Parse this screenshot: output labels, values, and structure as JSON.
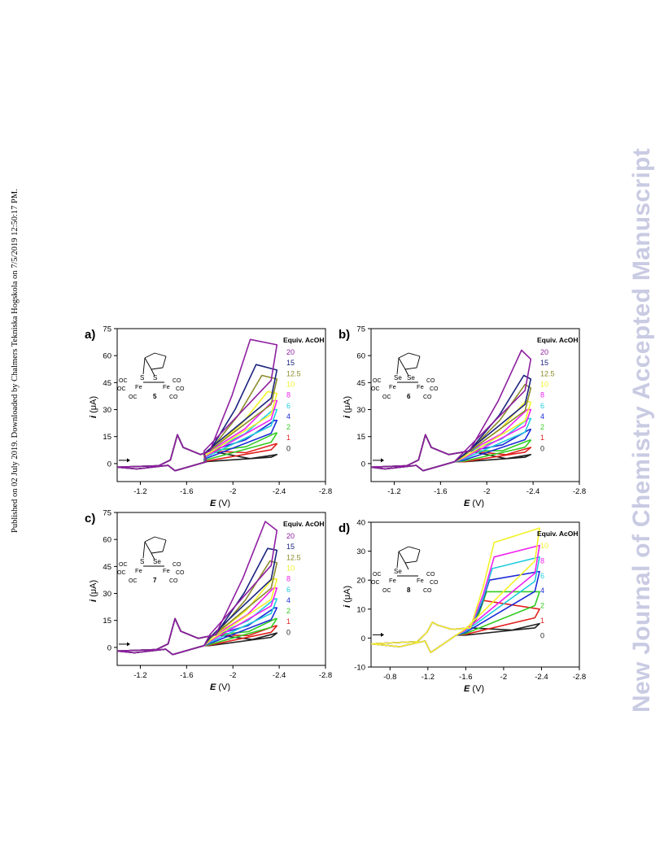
{
  "page": {
    "side_note": "Published on 02 July 2019. Downloaded by Chalmers Tekniska Hogskola on 7/5/2019 12:50:17 PM.",
    "watermark": "New Journal of Chemistry Accepted Manuscript"
  },
  "colors": {
    "0": "#222222",
    "1": "#e0221f",
    "2": "#33cc22",
    "4": "#1c2bd6",
    "6": "#22ccdd",
    "8": "#ee22ee",
    "10": "#f2f22a",
    "12.5": "#8a8a2a",
    "15": "#1a237e",
    "20": "#8e1fa0"
  },
  "chart_data": [
    {
      "panel": "a)",
      "type": "line",
      "compound": "5",
      "bridge_atoms": [
        "S",
        "S"
      ],
      "xlabel_italic": "E",
      "xlabel_unit": " (V)",
      "ylabel_italic": "i",
      "ylabel_unit": " (μA)",
      "legend_title": "Equiv. AcOH",
      "xlim": [
        -1.0,
        -2.8
      ],
      "ylim": [
        -10,
        75
      ],
      "xticks": [
        -1.2,
        -1.6,
        -2.0,
        -2.4,
        -2.8
      ],
      "yticks": [
        0,
        15,
        30,
        45,
        60,
        75
      ],
      "cat_onset": -1.8,
      "x_end": -2.38,
      "base_peak": -1.52,
      "series": [
        {
          "name": "20",
          "peak_x": -2.15,
          "peak_y": 69,
          "end_y": 66
        },
        {
          "name": "15",
          "peak_x": -2.2,
          "peak_y": 55,
          "end_y": 52
        },
        {
          "name": "12.5",
          "peak_x": -2.25,
          "peak_y": 49,
          "end_y": 47
        },
        {
          "name": "10",
          "peak_x": -2.3,
          "peak_y": 40,
          "end_y": 39
        },
        {
          "name": "8",
          "peak_x": -2.35,
          "peak_y": 35,
          "end_y": 35
        },
        {
          "name": "6",
          "peak_x": -2.35,
          "peak_y": 30,
          "end_y": 30
        },
        {
          "name": "4",
          "peak_x": -2.36,
          "peak_y": 24,
          "end_y": 24
        },
        {
          "name": "2",
          "peak_x": -2.37,
          "peak_y": 17,
          "end_y": 17
        },
        {
          "name": "1",
          "peak_x": -2.37,
          "peak_y": 11,
          "end_y": 11
        },
        {
          "name": "0",
          "peak_x": -2.38,
          "peak_y": 5,
          "end_y": 5
        }
      ]
    },
    {
      "panel": "b)",
      "type": "line",
      "compound": "6",
      "bridge_atoms": [
        "Se",
        "Se"
      ],
      "xlabel_italic": "E",
      "xlabel_unit": " (V)",
      "ylabel_italic": "i",
      "ylabel_unit": " (μA)",
      "legend_title": "Equiv. AcOH",
      "xlim": [
        -1.0,
        -2.8
      ],
      "ylim": [
        -10,
        75
      ],
      "xticks": [
        -1.2,
        -1.6,
        -2.0,
        -2.4,
        -2.8
      ],
      "yticks": [
        0,
        15,
        30,
        45,
        60,
        75
      ],
      "cat_onset": -1.85,
      "x_end": -2.38,
      "base_peak": -1.47,
      "series": [
        {
          "name": "20",
          "peak_x": -2.3,
          "peak_y": 63,
          "end_y": 58
        },
        {
          "name": "15",
          "peak_x": -2.32,
          "peak_y": 49,
          "end_y": 47
        },
        {
          "name": "12.5",
          "peak_x": -2.33,
          "peak_y": 44,
          "end_y": 42
        },
        {
          "name": "10",
          "peak_x": -2.34,
          "peak_y": 35,
          "end_y": 34
        },
        {
          "name": "8",
          "peak_x": -2.35,
          "peak_y": 30,
          "end_y": 30
        },
        {
          "name": "6",
          "peak_x": -2.36,
          "peak_y": 25,
          "end_y": 25
        },
        {
          "name": "4",
          "peak_x": -2.37,
          "peak_y": 19,
          "end_y": 19
        },
        {
          "name": "2",
          "peak_x": -2.37,
          "peak_y": 13,
          "end_y": 13
        },
        {
          "name": "1",
          "peak_x": -2.38,
          "peak_y": 9,
          "end_y": 9
        },
        {
          "name": "0",
          "peak_x": -2.38,
          "peak_y": 5,
          "end_y": 5
        }
      ]
    },
    {
      "panel": "c)",
      "type": "line",
      "compound": "7",
      "bridge_atoms": [
        "S",
        "Se"
      ],
      "xlabel_italic": "E",
      "xlabel_unit": " (V)",
      "ylabel_italic": "i",
      "ylabel_unit": " (μA)",
      "legend_title": "Equiv. AcOH",
      "xlim": [
        -1.0,
        -2.8
      ],
      "ylim": [
        -10,
        75
      ],
      "xticks": [
        -1.2,
        -1.6,
        -2.0,
        -2.4,
        -2.8
      ],
      "yticks": [
        0,
        15,
        30,
        45,
        60,
        75
      ],
      "cat_onset": -1.85,
      "x_end": -2.38,
      "base_peak": -1.5,
      "series": [
        {
          "name": "20",
          "peak_x": -2.28,
          "peak_y": 70,
          "end_y": 65
        },
        {
          "name": "15",
          "peak_x": -2.3,
          "peak_y": 55,
          "end_y": 54
        },
        {
          "name": "12.5",
          "peak_x": -2.32,
          "peak_y": 48,
          "end_y": 47
        },
        {
          "name": "10",
          "peak_x": -2.34,
          "peak_y": 38,
          "end_y": 38
        },
        {
          "name": "8",
          "peak_x": -2.35,
          "peak_y": 33,
          "end_y": 33
        },
        {
          "name": "6",
          "peak_x": -2.36,
          "peak_y": 27,
          "end_y": 27
        },
        {
          "name": "4",
          "peak_x": -2.36,
          "peak_y": 22,
          "end_y": 22
        },
        {
          "name": "2",
          "peak_x": -2.37,
          "peak_y": 16,
          "end_y": 16
        },
        {
          "name": "1",
          "peak_x": -2.37,
          "peak_y": 12,
          "end_y": 12
        },
        {
          "name": "0",
          "peak_x": -2.38,
          "peak_y": 8,
          "end_y": 8
        }
      ]
    },
    {
      "panel": "d)",
      "type": "line",
      "compound": "8",
      "bridge_atoms": [
        "Se"
      ],
      "xlabel_italic": "E",
      "xlabel_unit": " (V)",
      "ylabel_italic": "i",
      "ylabel_unit": " (μA)",
      "legend_title": "Equiv. AcOH",
      "xlim": [
        -0.6,
        -2.8
      ],
      "ylim": [
        -10,
        40
      ],
      "xticks": [
        -0.8,
        -1.2,
        -1.6,
        -2.0,
        -2.4,
        -2.8
      ],
      "yticks": [
        -10,
        0,
        10,
        20,
        30,
        40
      ],
      "cat_onset": -1.65,
      "x_end": -2.38,
      "base_peak": -1.25,
      "series": [
        {
          "name": "10",
          "peak_x": -1.9,
          "peak_y": 33,
          "end_y": 38
        },
        {
          "name": "8",
          "peak_x": -1.9,
          "peak_y": 28,
          "end_y": 32
        },
        {
          "name": "6",
          "peak_x": -1.88,
          "peak_y": 24,
          "end_y": 28
        },
        {
          "name": "4",
          "peak_x": -1.85,
          "peak_y": 20,
          "end_y": 23
        },
        {
          "name": "2",
          "peak_x": -1.82,
          "peak_y": 16,
          "end_y": 16
        },
        {
          "name": "1",
          "peak_x": -1.78,
          "peak_y": 13,
          "end_y": 10
        },
        {
          "name": "0",
          "peak_x": -2.38,
          "peak_y": 5,
          "end_y": 5
        }
      ]
    }
  ]
}
